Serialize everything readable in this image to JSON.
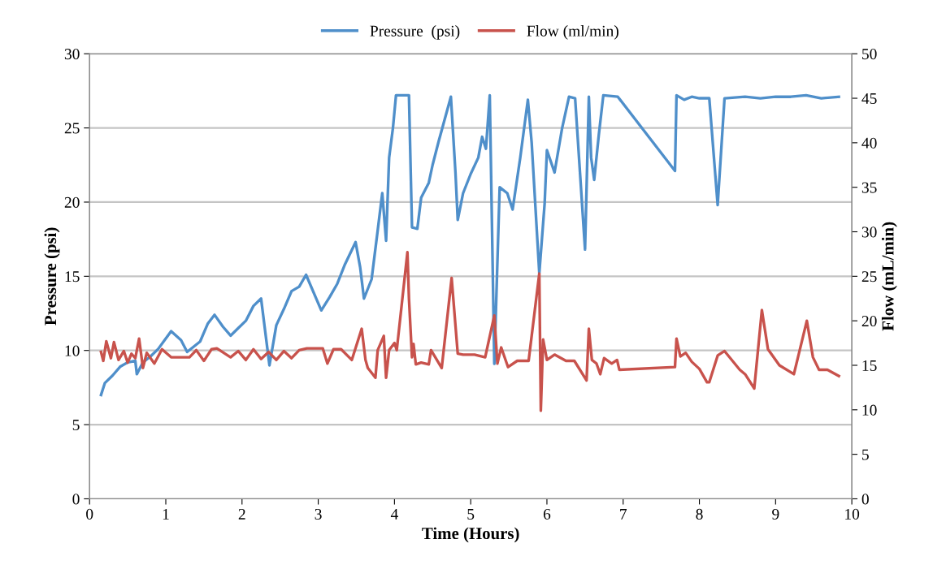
{
  "chart_data": {
    "type": "line",
    "xlabel": "Time (Hours)",
    "ylabel": "Pressure (psi)",
    "y2label": "Flow (mL/min)",
    "xlim": [
      0,
      10
    ],
    "xticks": [
      0,
      1,
      2,
      3,
      4,
      5,
      6,
      7,
      8,
      9,
      10
    ],
    "ylim": [
      0,
      30
    ],
    "yticks": [
      0,
      5,
      10,
      15,
      20,
      25,
      30
    ],
    "y2lim": [
      0,
      50
    ],
    "y2ticks": [
      0,
      5,
      10,
      15,
      20,
      25,
      30,
      35,
      40,
      45,
      50
    ],
    "grid": "y",
    "legend": "top",
    "marker": "none",
    "line_style": "solid",
    "series": [
      {
        "name": "Pressure  (psi)",
        "color": "#4f8fca",
        "x": [
          0.15,
          0.2,
          0.3,
          0.4,
          0.5,
          0.6,
          0.62,
          0.7,
          0.8,
          0.9,
          1.0,
          1.07,
          1.2,
          1.28,
          1.45,
          1.55,
          1.64,
          1.75,
          1.85,
          1.95,
          2.05,
          2.15,
          2.25,
          2.36,
          2.45,
          2.55,
          2.65,
          2.75,
          2.84,
          3.04,
          3.15,
          3.25,
          3.35,
          3.49,
          3.55,
          3.6,
          3.7,
          3.78,
          3.84,
          3.89,
          3.93,
          3.98,
          4.02,
          4.19,
          4.23,
          4.3,
          4.35,
          4.45,
          4.5,
          4.58,
          4.74,
          4.8,
          4.83,
          4.9,
          5.0,
          5.1,
          5.15,
          5.2,
          5.25,
          5.31,
          5.38,
          5.48,
          5.55,
          5.65,
          5.75,
          5.8,
          5.9,
          5.97,
          6.0,
          6.1,
          6.2,
          6.29,
          6.37,
          6.5,
          6.55,
          6.58,
          6.62,
          6.68,
          6.74,
          6.93,
          7.68,
          7.7,
          7.8,
          7.9,
          8.0,
          8.13,
          8.24,
          8.33,
          8.6,
          8.8,
          9.0,
          9.2,
          9.4,
          9.6,
          9.83
        ],
        "values": [
          7.0,
          7.8,
          8.3,
          8.9,
          9.2,
          9.3,
          8.4,
          9.2,
          9.6,
          10.1,
          10.8,
          11.3,
          10.7,
          9.9,
          10.6,
          11.8,
          12.4,
          11.6,
          11.0,
          11.5,
          12.0,
          13.0,
          13.5,
          9.0,
          11.7,
          12.8,
          14.0,
          14.3,
          15.1,
          12.7,
          13.6,
          14.5,
          15.8,
          17.3,
          15.6,
          13.5,
          14.8,
          18.1,
          20.6,
          17.4,
          23.0,
          25.0,
          27.2,
          27.2,
          18.3,
          18.2,
          20.3,
          21.3,
          22.5,
          24.1,
          27.1,
          22.0,
          18.8,
          20.6,
          21.9,
          23.0,
          24.4,
          23.6,
          27.2,
          9.1,
          21.0,
          20.6,
          19.5,
          23.0,
          26.9,
          24.0,
          15.2,
          19.9,
          23.5,
          22.0,
          25.0,
          27.1,
          27.0,
          16.8,
          27.1,
          23.0,
          21.5,
          24.5,
          27.2,
          27.1,
          22.1,
          27.2,
          26.9,
          27.1,
          27.0,
          27.0,
          19.8,
          27.0,
          27.1,
          27.0,
          27.1,
          27.1,
          27.2,
          27.0,
          27.1
        ]
      },
      {
        "name": "Flow (ml/min)",
        "color": "#c8524c",
        "axis": "y2",
        "x": [
          0.15,
          0.18,
          0.22,
          0.28,
          0.32,
          0.38,
          0.45,
          0.5,
          0.55,
          0.6,
          0.65,
          0.7,
          0.75,
          0.85,
          0.95,
          1.07,
          1.31,
          1.4,
          1.5,
          1.6,
          1.67,
          1.85,
          1.95,
          2.05,
          2.15,
          2.25,
          2.35,
          2.45,
          2.55,
          2.65,
          2.75,
          2.85,
          3.06,
          3.12,
          3.2,
          3.3,
          3.44,
          3.57,
          3.62,
          3.65,
          3.75,
          3.78,
          3.86,
          3.89,
          3.93,
          4.0,
          4.03,
          4.17,
          4.19,
          4.23,
          4.25,
          4.28,
          4.35,
          4.45,
          4.48,
          4.62,
          4.75,
          4.83,
          4.9,
          5.05,
          5.19,
          5.31,
          5.35,
          5.4,
          5.49,
          5.61,
          5.76,
          5.9,
          5.92,
          5.95,
          6.0,
          6.1,
          6.25,
          6.36,
          6.52,
          6.55,
          6.59,
          6.65,
          6.7,
          6.75,
          6.85,
          6.92,
          6.95,
          7.68,
          7.7,
          7.75,
          7.82,
          7.9,
          8.0,
          8.1,
          8.13,
          8.24,
          8.33,
          8.53,
          8.6,
          8.72,
          8.82,
          8.9,
          9.05,
          9.24,
          9.41,
          9.49,
          9.57,
          9.68,
          9.83
        ],
        "values": [
          16.5,
          15.5,
          17.7,
          15.8,
          17.6,
          15.6,
          16.6,
          15.3,
          16.3,
          15.8,
          18.0,
          14.7,
          16.4,
          15.2,
          16.8,
          15.9,
          15.9,
          16.7,
          15.5,
          16.8,
          16.9,
          15.9,
          16.6,
          15.6,
          16.8,
          15.7,
          16.5,
          15.6,
          16.6,
          15.8,
          16.7,
          16.9,
          16.9,
          15.2,
          16.8,
          16.8,
          15.6,
          19.1,
          15.6,
          14.7,
          13.6,
          16.7,
          18.3,
          13.6,
          16.7,
          17.5,
          16.7,
          27.7,
          22.5,
          15.9,
          17.4,
          15.1,
          15.3,
          15.1,
          16.7,
          14.7,
          24.8,
          16.3,
          16.2,
          16.2,
          15.9,
          20.6,
          15.2,
          17.0,
          14.8,
          15.5,
          15.5,
          25.3,
          9.9,
          17.9,
          15.6,
          16.2,
          15.5,
          15.5,
          13.3,
          19.1,
          15.6,
          15.2,
          14.0,
          15.8,
          15.2,
          15.6,
          14.5,
          14.8,
          18.0,
          16.0,
          16.4,
          15.4,
          14.6,
          13.1,
          13.1,
          16.1,
          16.6,
          14.5,
          14.0,
          12.4,
          21.2,
          16.8,
          15.0,
          14.0,
          20.0,
          15.9,
          14.5,
          14.5,
          13.8
        ]
      }
    ]
  }
}
